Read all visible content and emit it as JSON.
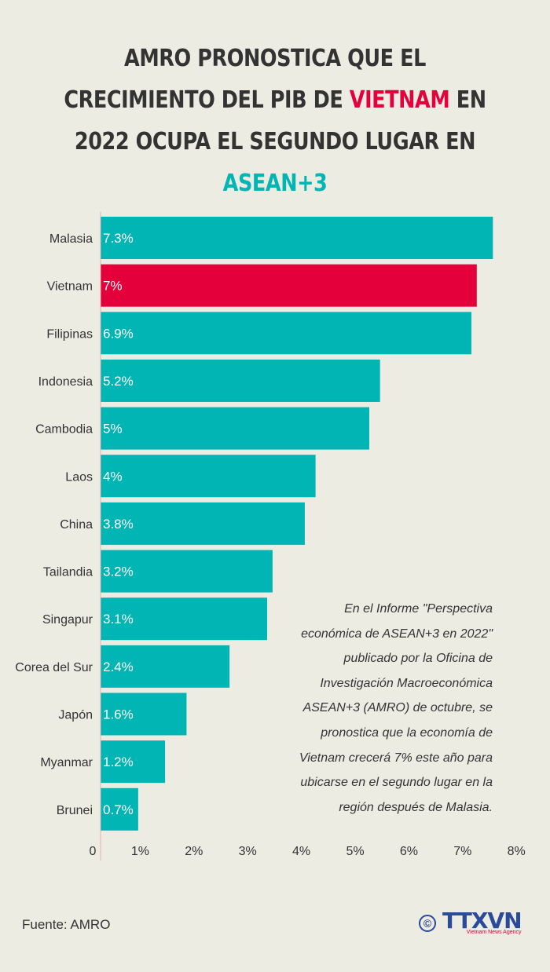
{
  "title": {
    "line1": "AMRO PRONOSTICA QUE EL",
    "line2_pre": "CRECIMIENTO DEL PIB DE ",
    "line2_hl": "VIETNAM",
    "line2_post": " EN",
    "line3": "2022 OCUPA EL SEGUNDO LUGAR EN",
    "line4": "ASEAN+3"
  },
  "colors": {
    "bar": "#00b5b3",
    "highlight": "#e4003a",
    "background": "#edece3"
  },
  "chart_data": {
    "type": "bar",
    "orientation": "horizontal",
    "categories": [
      "Malasia",
      "Vietnam",
      "Filipinas",
      "Indonesia",
      "Cambodia",
      "Laos",
      "China",
      "Tailandia",
      "Singapur",
      "Corea del Sur",
      "Japón",
      "Myanmar",
      "Brunei"
    ],
    "values": [
      7.3,
      7,
      6.9,
      5.2,
      5,
      4,
      3.8,
      3.2,
      3.1,
      2.4,
      1.6,
      1.2,
      0.7
    ],
    "data_labels": [
      "7.3%",
      "7%",
      "6.9%",
      "5.2%",
      "5%",
      "4%",
      "3.8%",
      "3.2%",
      "3.1%",
      "2.4%",
      "1.6%",
      "1.2%",
      "0.7%"
    ],
    "highlight": "Vietnam",
    "xlim": [
      0,
      8
    ],
    "xticks": [
      "0",
      "1%",
      "2%",
      "3%",
      "4%",
      "5%",
      "6%",
      "7%",
      "8%"
    ],
    "grid": false
  },
  "note": "En el Informe \"Perspectiva económica de ASEAN+3 en 2022\" publicado por la Oficina de Investigación Macroeconómica ASEAN+3 (AMRO) de octubre, se pronostica que la economía de Vietnam crecerá  7% este año para ubicarse en el segundo lugar en la región después de Malasia.",
  "source": "Fuente: AMRO",
  "logo": {
    "copyright": "©",
    "name": "TTXVN",
    "tagline": "Vietnam News Agency"
  }
}
